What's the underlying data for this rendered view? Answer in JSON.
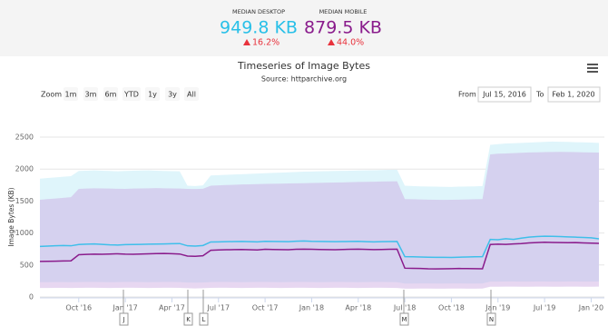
{
  "header": {
    "desktop": {
      "label": "MEDIAN DESKTOP",
      "value": "949.8 KB",
      "change": "16.2%"
    },
    "mobile": {
      "label": "MEDIAN MOBILE",
      "value": "879.5 KB",
      "change": "44.0%"
    }
  },
  "chart_data": {
    "type": "line",
    "title": "Timeseries of Image Bytes",
    "subtitle": "Source: httparchive.org",
    "y_label": "Image Bytes (KB)",
    "zoom": {
      "label": "Zoom",
      "buttons": [
        "1m",
        "3m",
        "6m",
        "YTD",
        "1y",
        "3y",
        "All"
      ]
    },
    "range": {
      "from_label": "From",
      "from": "Jul 15, 2016",
      "to_label": "To",
      "to": "Feb 1, 2020"
    },
    "annotations": [
      "J",
      "K",
      "L",
      "M",
      "N"
    ],
    "categories": [
      null,
      null,
      null,
      null,
      null,
      "Oct '16",
      null,
      null,
      null,
      null,
      null,
      "Jan '17",
      null,
      null,
      null,
      null,
      null,
      "Apr '17",
      null,
      null,
      null,
      null,
      null,
      "Jul '17",
      null,
      null,
      null,
      null,
      null,
      "Oct '17",
      null,
      null,
      null,
      null,
      null,
      "Jan '18",
      null,
      null,
      null,
      null,
      null,
      "Apr '18",
      null,
      null,
      null,
      null,
      null,
      "Jul '18",
      null,
      null,
      null,
      null,
      null,
      "Oct '18",
      null,
      null,
      null,
      null,
      null,
      "Jan '19",
      null,
      null,
      null,
      null,
      null,
      "Jul '19",
      null,
      null,
      null,
      null,
      null,
      "Jan '20",
      null
    ],
    "ylim": [
      0,
      2500
    ],
    "yticks": [
      0,
      500,
      1000,
      1500,
      2000,
      2500
    ],
    "grid": true,
    "ranges": [
      {
        "color": "#dff5fb",
        "low": [
          230,
          230,
          232,
          232,
          230,
          232,
          234,
          234,
          232,
          230,
          232,
          234,
          234,
          232,
          230,
          232,
          234,
          234,
          232,
          226,
          224,
          226,
          232,
          234,
          234,
          232,
          230,
          232,
          234,
          234,
          232,
          230,
          232,
          234,
          234,
          232,
          230,
          232,
          234,
          234,
          232,
          230,
          232,
          234,
          234,
          232,
          230,
          210,
          210,
          212,
          212,
          210,
          210,
          212,
          212,
          210,
          210,
          212,
          240,
          240,
          242,
          242,
          240,
          240,
          242,
          242,
          240,
          240,
          242,
          242,
          240,
          240,
          242
        ],
        "high": [
          1850,
          1860,
          1870,
          1880,
          1890,
          1970,
          1975,
          1980,
          1975,
          1970,
          1965,
          1970,
          1975,
          1978,
          1980,
          1975,
          1970,
          1968,
          1965,
          1740,
          1735,
          1745,
          1900,
          1905,
          1910,
          1915,
          1920,
          1925,
          1930,
          1935,
          1940,
          1945,
          1950,
          1955,
          1960,
          1962,
          1965,
          1968,
          1970,
          1972,
          1975,
          1978,
          1980,
          1982,
          1985,
          1988,
          1990,
          1740,
          1735,
          1730,
          1728,
          1725,
          1722,
          1720,
          1725,
          1728,
          1730,
          1735,
          2380,
          2390,
          2400,
          2405,
          2410,
          2415,
          2420,
          2425,
          2430,
          2428,
          2425,
          2420,
          2418,
          2415,
          2410
        ]
      },
      {
        "color": "#c9a6e0",
        "low": [
          140,
          140,
          142,
          142,
          140,
          142,
          144,
          144,
          142,
          140,
          142,
          144,
          144,
          142,
          140,
          142,
          144,
          144,
          142,
          136,
          134,
          136,
          142,
          144,
          144,
          142,
          140,
          142,
          144,
          144,
          142,
          140,
          142,
          144,
          144,
          142,
          140,
          142,
          144,
          144,
          142,
          140,
          142,
          144,
          144,
          142,
          140,
          130,
          130,
          132,
          132,
          130,
          130,
          132,
          132,
          130,
          130,
          132,
          160,
          160,
          162,
          162,
          160,
          160,
          162,
          162,
          160,
          160,
          162,
          162,
          160,
          160,
          162
        ],
        "high": [
          1520,
          1530,
          1540,
          1550,
          1560,
          1690,
          1695,
          1700,
          1698,
          1695,
          1692,
          1690,
          1695,
          1698,
          1700,
          1702,
          1700,
          1698,
          1695,
          1690,
          1688,
          1692,
          1740,
          1745,
          1750,
          1755,
          1760,
          1762,
          1765,
          1768,
          1770,
          1772,
          1775,
          1778,
          1780,
          1782,
          1785,
          1788,
          1790,
          1792,
          1795,
          1798,
          1800,
          1802,
          1805,
          1808,
          1810,
          1530,
          1528,
          1525,
          1522,
          1520,
          1518,
          1520,
          1522,
          1525,
          1528,
          1530,
          2230,
          2240,
          2245,
          2250,
          2255,
          2260,
          2262,
          2265,
          2268,
          2270,
          2268,
          2265,
          2262,
          2260,
          2258
        ]
      }
    ],
    "series": [
      {
        "color": "#3fbfea",
        "values": [
          790,
          795,
          800,
          805,
          800,
          820,
          825,
          830,
          822,
          815,
          812,
          818,
          820,
          822,
          825,
          828,
          830,
          832,
          835,
          800,
          795,
          805,
          860,
          862,
          865,
          866,
          868,
          865,
          862,
          870,
          868,
          866,
          865,
          872,
          875,
          870,
          868,
          866,
          864,
          866,
          868,
          870,
          865,
          862,
          864,
          866,
          868,
          630,
          628,
          625,
          622,
          620,
          620,
          618,
          622,
          625,
          628,
          630,
          900,
          895,
          910,
          900,
          920,
          935,
          945,
          950,
          948,
          945,
          940,
          935,
          930,
          925,
          909
        ]
      },
      {
        "color": "#8a1c8c",
        "values": [
          555,
          558,
          560,
          562,
          565,
          660,
          665,
          670,
          668,
          672,
          675,
          670,
          668,
          672,
          675,
          678,
          680,
          676,
          672,
          640,
          635,
          645,
          730,
          735,
          738,
          740,
          742,
          738,
          735,
          745,
          742,
          740,
          738,
          745,
          748,
          745,
          742,
          740,
          738,
          742,
          745,
          748,
          744,
          740,
          742,
          745,
          748,
          450,
          448,
          445,
          440,
          438,
          440,
          442,
          445,
          444,
          442,
          440,
          820,
          825,
          822,
          830,
          835,
          845,
          850,
          855,
          852,
          850,
          848,
          850,
          845,
          842,
          838
        ]
      }
    ]
  }
}
